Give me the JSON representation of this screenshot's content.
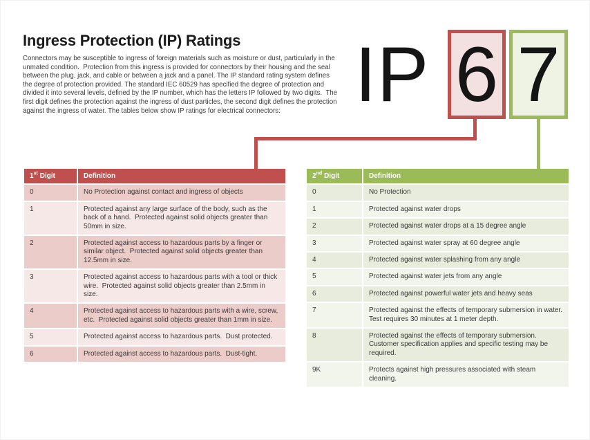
{
  "page": {
    "title": "Ingress Protection (IP) Ratings",
    "intro": "Connectors may be susceptible to ingress of foreign materials such as moisture or dust, particularly in the unmated condition.  Protection from this ingress is provided for connectors by their housing and the seal between the plug, jack, and cable or between a jack and a panel. The IP standard rating system defines the degree of protection provided. The standard IEC 60529 has specified the degree of protection and divided it into several levels, defined by the IP number, which has the letters IP followed by two digits.  The first digit defines the protection against the ingress of dust particles, the second digit defines the protection against the ingress of water. The tables below show IP ratings for electrical connectors:"
  },
  "ip_graphic": {
    "letter_i": "I",
    "letter_p": "P",
    "first_digit": "6",
    "second_digit": "7"
  },
  "colors": {
    "accent_red": "#c0504d",
    "accent_green": "#9bbb59",
    "red_box_fill": "#f3e0e0",
    "green_box_fill": "#eff3e4",
    "red_band_dark": "#ecccc9",
    "red_band_light": "#f6e8e6",
    "green_band_dark": "#e7ecdd",
    "green_band_light": "#f2f5ec"
  },
  "first_digit_table": {
    "headers": {
      "digit_num": "1",
      "digit_sup": "st",
      "digit_word": "Digit",
      "definition": "Definition"
    },
    "rows": [
      {
        "digit": "0",
        "definition": "No Protection against contact and ingress of objects"
      },
      {
        "digit": "1",
        "definition": "Protected against any large surface of the body, such as the back of a hand.  Protected against solid objects greater than 50mm in size."
      },
      {
        "digit": "2",
        "definition": "Protected against access to hazardous parts by a finger or similar object.  Protected against solid objects greater than 12.5mm in size."
      },
      {
        "digit": "3",
        "definition": "Protected against access to hazardous parts with a tool or thick wire.  Protected against solid objects greater than 2.5mm in size."
      },
      {
        "digit": "4",
        "definition": "Protected against access to hazardous parts with a wire, screw, etc.  Protected against solid objects greater than 1mm in size."
      },
      {
        "digit": "5",
        "definition": "Protected against access to hazardous parts.  Dust protected."
      },
      {
        "digit": "6",
        "definition": "Protected against access to hazardous parts.  Dust-tight."
      }
    ]
  },
  "second_digit_table": {
    "headers": {
      "digit_num": "2",
      "digit_sup": "nd",
      "digit_word": "Digit",
      "definition": "Definition"
    },
    "rows": [
      {
        "digit": "0",
        "definition": "No Protection"
      },
      {
        "digit": "1",
        "definition": "Protected against water drops"
      },
      {
        "digit": "2",
        "definition": "Protected against water drops at a 15 degree angle"
      },
      {
        "digit": "3",
        "definition": "Protected against water spray at 60 degree angle"
      },
      {
        "digit": "4",
        "definition": "Protected against water splashing from any angle"
      },
      {
        "digit": "5",
        "definition": "Protected against water jets from any angle"
      },
      {
        "digit": "6",
        "definition": "Protected against powerful water jets and heavy seas"
      },
      {
        "digit": "7",
        "definition": "Protected against the effects of temporary submersion in water.  Test requires 30 minutes at 1 meter depth."
      },
      {
        "digit": "8",
        "definition": "Protected against the effects of temporary submersion. Customer specification applies and specific testing may be required."
      },
      {
        "digit": "9K",
        "definition": "Protects against high pressures associated with steam cleaning."
      }
    ]
  }
}
